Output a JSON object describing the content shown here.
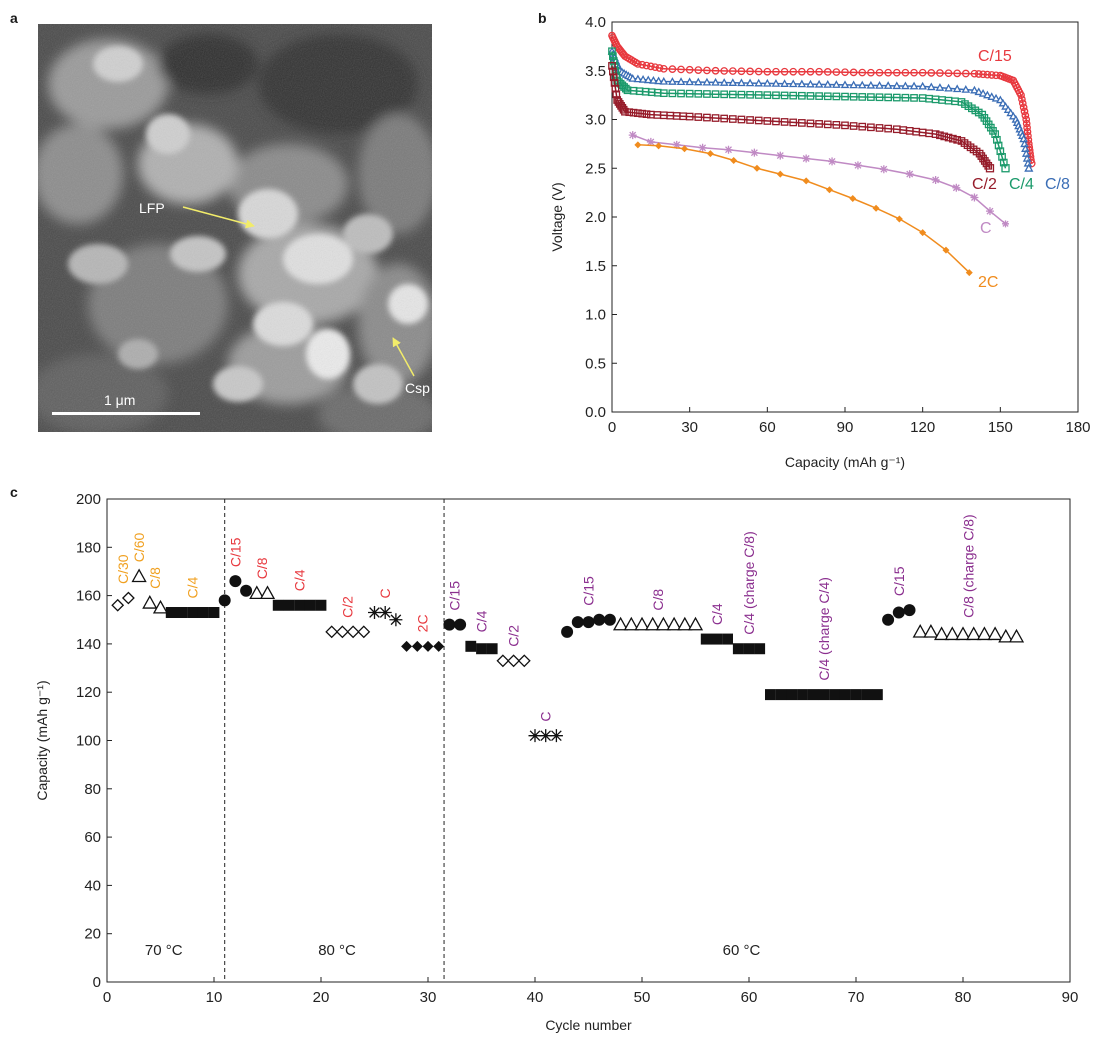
{
  "panels": {
    "a": {
      "letter": "a",
      "labels": {
        "lfp": "LFP",
        "csp": "Csp",
        "scale_bar": "1 μm"
      }
    },
    "b": {
      "letter": "b"
    },
    "c": {
      "letter": "c"
    }
  },
  "colors": {
    "c15": "#e8393f",
    "c8": "#3a6db5",
    "c4": "#1b9a6b",
    "c2": "#961c2a",
    "c1": "#c08ac4",
    "c2c": "#f08c1e",
    "purple": "#8b2f8f",
    "orange": "#f0a020",
    "red": "#e8393f"
  },
  "chart_data": [
    {
      "type": "line",
      "xlabel": "Capacity (mAh g⁻¹)",
      "ylabel": "Voltage (V)",
      "xlim": [
        0,
        180
      ],
      "ylim": [
        0,
        4.0
      ],
      "xticks": [
        "0",
        "30",
        "60",
        "90",
        "120",
        "150",
        "180"
      ],
      "yticks": [
        "0.0",
        "0.5",
        "1.0",
        "1.5",
        "2.0",
        "2.5",
        "3.0",
        "3.5",
        "4.0"
      ],
      "series": [
        {
          "name": "C/15",
          "color": "#e8393f",
          "marker": "circle",
          "points": [
            [
              0,
              3.86
            ],
            [
              2,
              3.75
            ],
            [
              5,
              3.65
            ],
            [
              10,
              3.57
            ],
            [
              20,
              3.52
            ],
            [
              40,
              3.5
            ],
            [
              60,
              3.49
            ],
            [
              80,
              3.49
            ],
            [
              100,
              3.48
            ],
            [
              120,
              3.48
            ],
            [
              140,
              3.47
            ],
            [
              150,
              3.45
            ],
            [
              155,
              3.4
            ],
            [
              158,
              3.25
            ],
            [
              160,
              3.0
            ],
            [
              161,
              2.75
            ],
            [
              162,
              2.55
            ]
          ]
        },
        {
          "name": "C/8",
          "color": "#3a6db5",
          "marker": "triangle",
          "points": [
            [
              0,
              3.7
            ],
            [
              3,
              3.5
            ],
            [
              8,
              3.42
            ],
            [
              20,
              3.39
            ],
            [
              40,
              3.38
            ],
            [
              60,
              3.37
            ],
            [
              80,
              3.36
            ],
            [
              100,
              3.35
            ],
            [
              120,
              3.34
            ],
            [
              140,
              3.3
            ],
            [
              150,
              3.2
            ],
            [
              156,
              3.0
            ],
            [
              159,
              2.8
            ],
            [
              161,
              2.5
            ]
          ]
        },
        {
          "name": "C/4",
          "color": "#1b9a6b",
          "marker": "square",
          "points": [
            [
              0,
              3.7
            ],
            [
              2,
              3.4
            ],
            [
              6,
              3.3
            ],
            [
              20,
              3.27
            ],
            [
              40,
              3.26
            ],
            [
              60,
              3.25
            ],
            [
              80,
              3.24
            ],
            [
              100,
              3.23
            ],
            [
              120,
              3.22
            ],
            [
              135,
              3.18
            ],
            [
              143,
              3.05
            ],
            [
              148,
              2.85
            ],
            [
              152,
              2.5
            ]
          ]
        },
        {
          "name": "C/2",
          "color": "#961c2a",
          "marker": "square",
          "points": [
            [
              0,
              3.55
            ],
            [
              2,
              3.2
            ],
            [
              5,
              3.08
            ],
            [
              15,
              3.05
            ],
            [
              30,
              3.03
            ],
            [
              50,
              3.0
            ],
            [
              70,
              2.97
            ],
            [
              90,
              2.94
            ],
            [
              110,
              2.9
            ],
            [
              125,
              2.85
            ],
            [
              135,
              2.78
            ],
            [
              142,
              2.65
            ],
            [
              146,
              2.5
            ]
          ]
        },
        {
          "name": "C",
          "color": "#c08ac4",
          "marker": "star",
          "points": [
            [
              8,
              2.84
            ],
            [
              15,
              2.77
            ],
            [
              25,
              2.74
            ],
            [
              35,
              2.71
            ],
            [
              45,
              2.69
            ],
            [
              55,
              2.66
            ],
            [
              65,
              2.63
            ],
            [
              75,
              2.6
            ],
            [
              85,
              2.57
            ],
            [
              95,
              2.53
            ],
            [
              105,
              2.49
            ],
            [
              115,
              2.44
            ],
            [
              125,
              2.38
            ],
            [
              133,
              2.3
            ],
            [
              140,
              2.2
            ],
            [
              146,
              2.06
            ],
            [
              152,
              1.93
            ]
          ]
        },
        {
          "name": "2C",
          "color": "#f08c1e",
          "marker": "diamond",
          "points": [
            [
              10,
              2.74
            ],
            [
              18,
              2.73
            ],
            [
              28,
              2.7
            ],
            [
              38,
              2.65
            ],
            [
              47,
              2.58
            ],
            [
              56,
              2.5
            ],
            [
              65,
              2.44
            ],
            [
              75,
              2.37
            ],
            [
              84,
              2.28
            ],
            [
              93,
              2.19
            ],
            [
              102,
              2.09
            ],
            [
              111,
              1.98
            ],
            [
              120,
              1.84
            ],
            [
              129,
              1.66
            ],
            [
              138,
              1.43
            ]
          ]
        }
      ],
      "annotations": [
        {
          "text": "C/15",
          "color": "#e8393f"
        },
        {
          "text": "C/2",
          "color": "#961c2a"
        },
        {
          "text": "C/4",
          "color": "#1b9a6b"
        },
        {
          "text": "C/8",
          "color": "#3a6db5"
        },
        {
          "text": "C",
          "color": "#c08ac4"
        },
        {
          "text": "2C",
          "color": "#f08c1e"
        }
      ]
    },
    {
      "type": "scatter",
      "xlabel": "Cycle number",
      "ylabel": "Capacity (mAh g⁻¹)",
      "xlim": [
        0,
        90
      ],
      "ylim": [
        0,
        200
      ],
      "xticks": [
        "0",
        "10",
        "20",
        "30",
        "40",
        "50",
        "60",
        "70",
        "80",
        "90"
      ],
      "yticks": [
        "0",
        "20",
        "40",
        "60",
        "80",
        "100",
        "120",
        "140",
        "160",
        "180",
        "200"
      ],
      "dividers": [
        11,
        31.5
      ],
      "temperatures": [
        "70 °C",
        "80 °C",
        "60 °C"
      ],
      "groups": [
        {
          "label": "C/30",
          "color": "#f0a020",
          "marker": "diamond-open",
          "points": [
            [
              1,
              156
            ],
            [
              2,
              159
            ]
          ]
        },
        {
          "label": "C/60",
          "color": "#f0a020",
          "marker": "triangle-open",
          "points": [
            [
              3,
              168
            ]
          ]
        },
        {
          "label": "C/8",
          "color": "#f0a020",
          "marker": "triangle-open",
          "points": [
            [
              4,
              157
            ],
            [
              5,
              155
            ]
          ]
        },
        {
          "label": "C/4",
          "color": "#f0a020",
          "marker": "square",
          "points": [
            [
              6,
              153
            ],
            [
              7,
              153
            ],
            [
              8,
              153
            ],
            [
              9,
              153
            ],
            [
              10,
              153
            ]
          ]
        },
        {
          "label": "C/15",
          "color": "#e8393f",
          "marker": "circle",
          "points": [
            [
              11,
              158
            ],
            [
              12,
              166
            ],
            [
              13,
              162
            ]
          ]
        },
        {
          "label": "C/8",
          "color": "#e8393f",
          "marker": "triangle-open",
          "points": [
            [
              14,
              161
            ],
            [
              15,
              161
            ]
          ]
        },
        {
          "label": "C/4",
          "color": "#e8393f",
          "marker": "square",
          "points": [
            [
              16,
              156
            ],
            [
              17,
              156
            ],
            [
              18,
              156
            ],
            [
              19,
              156
            ],
            [
              20,
              156
            ]
          ]
        },
        {
          "label": "C/2",
          "color": "#e8393f",
          "marker": "diamond-open",
          "points": [
            [
              21,
              145
            ],
            [
              22,
              145
            ],
            [
              23,
              145
            ],
            [
              24,
              145
            ]
          ]
        },
        {
          "label": "C",
          "color": "#e8393f",
          "marker": "star",
          "points": [
            [
              25,
              153
            ],
            [
              26,
              153
            ],
            [
              27,
              150
            ]
          ]
        },
        {
          "label": "2C",
          "color": "#e8393f",
          "marker": "diamond",
          "points": [
            [
              28,
              139
            ],
            [
              29,
              139
            ],
            [
              30,
              139
            ],
            [
              31,
              139
            ]
          ]
        },
        {
          "label": "C/15",
          "color": "#8b2f8f",
          "marker": "circle",
          "points": [
            [
              32,
              148
            ],
            [
              33,
              148
            ]
          ]
        },
        {
          "label": "C/4",
          "color": "#8b2f8f",
          "marker": "square",
          "points": [
            [
              34,
              139
            ],
            [
              35,
              138
            ],
            [
              36,
              138
            ]
          ]
        },
        {
          "label": "C/2",
          "color": "#8b2f8f",
          "marker": "diamond-open",
          "points": [
            [
              37,
              133
            ],
            [
              38,
              133
            ],
            [
              39,
              133
            ]
          ]
        },
        {
          "label": "C",
          "color": "#8b2f8f",
          "marker": "star",
          "points": [
            [
              40,
              102
            ],
            [
              41,
              102
            ],
            [
              42,
              102
            ]
          ]
        },
        {
          "label": "C/15",
          "color": "#8b2f8f",
          "marker": "circle",
          "points": [
            [
              43,
              145
            ],
            [
              44,
              149
            ],
            [
              45,
              149
            ],
            [
              46,
              150
            ],
            [
              47,
              150
            ]
          ]
        },
        {
          "label": "C/8",
          "color": "#8b2f8f",
          "marker": "triangle-open",
          "points": [
            [
              48,
              148
            ],
            [
              49,
              148
            ],
            [
              50,
              148
            ],
            [
              51,
              148
            ],
            [
              52,
              148
            ],
            [
              53,
              148
            ],
            [
              54,
              148
            ],
            [
              55,
              148
            ]
          ]
        },
        {
          "label": "C/4",
          "color": "#8b2f8f",
          "marker": "square",
          "points": [
            [
              56,
              142
            ],
            [
              57,
              142
            ],
            [
              58,
              142
            ]
          ]
        },
        {
          "label": "C/4 (charge C/8)",
          "color": "#8b2f8f",
          "marker": "square",
          "points": [
            [
              59,
              138
            ],
            [
              60,
              138
            ],
            [
              61,
              138
            ]
          ]
        },
        {
          "label": "C/4 (charge C/4)",
          "color": "#8b2f8f",
          "marker": "square",
          "points": [
            [
              62,
              119
            ],
            [
              63,
              119
            ],
            [
              64,
              119
            ],
            [
              65,
              119
            ],
            [
              66,
              119
            ],
            [
              67,
              119
            ],
            [
              68,
              119
            ],
            [
              69,
              119
            ],
            [
              70,
              119
            ],
            [
              71,
              119
            ],
            [
              72,
              119
            ]
          ]
        },
        {
          "label": "C/15",
          "color": "#8b2f8f",
          "marker": "circle",
          "points": [
            [
              73,
              150
            ],
            [
              74,
              153
            ],
            [
              75,
              154
            ]
          ]
        },
        {
          "label": "C/8 (charge C/8)",
          "color": "#8b2f8f",
          "marker": "triangle-open",
          "points": [
            [
              76,
              145
            ],
            [
              77,
              145
            ],
            [
              78,
              144
            ],
            [
              79,
              144
            ],
            [
              80,
              144
            ],
            [
              81,
              144
            ],
            [
              82,
              144
            ],
            [
              83,
              144
            ],
            [
              84,
              143
            ],
            [
              85,
              143
            ]
          ]
        }
      ]
    }
  ]
}
